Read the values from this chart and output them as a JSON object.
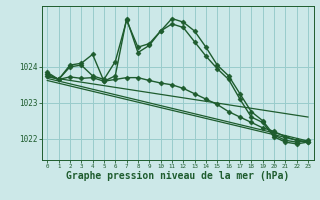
{
  "background_color": "#cce8e8",
  "grid_color": "#99cccc",
  "line_color": "#1e5c2e",
  "marker_color": "#1e5c2e",
  "xlabel": "Graphe pression niveau de la mer (hPa)",
  "xlabel_fontsize": 7,
  "xlim": [
    -0.5,
    23.5
  ],
  "ylim": [
    1021.4,
    1025.7
  ],
  "yticks": [
    1022,
    1023,
    1024
  ],
  "xticks": [
    0,
    1,
    2,
    3,
    4,
    5,
    6,
    7,
    8,
    9,
    10,
    11,
    12,
    13,
    14,
    15,
    16,
    17,
    18,
    19,
    20,
    21,
    22,
    23
  ],
  "series": [
    {
      "x": [
        0,
        1,
        2,
        3,
        4,
        5,
        6,
        7,
        8,
        9,
        10,
        11,
        12,
        13,
        14,
        15,
        16,
        17,
        18,
        19,
        20,
        21,
        22,
        23
      ],
      "y": [
        1023.8,
        1023.65,
        1024.0,
        1024.05,
        1023.75,
        1023.65,
        1024.15,
        1025.3,
        1024.55,
        1024.65,
        1025.0,
        1025.35,
        1025.25,
        1025.0,
        1024.55,
        1024.05,
        1023.75,
        1023.25,
        1022.75,
        1022.5,
        1022.1,
        1021.95,
        1021.9,
        1021.95
      ],
      "marker": "D",
      "markersize": 2.5,
      "linewidth": 1.0
    },
    {
      "x": [
        0,
        1,
        2,
        3,
        4,
        5,
        6,
        7,
        8,
        9,
        10,
        11,
        12,
        13,
        14,
        15,
        16,
        17,
        18,
        19,
        20,
        21,
        22,
        23
      ],
      "y": [
        1023.85,
        1023.65,
        1024.05,
        1024.1,
        1024.35,
        1023.6,
        1023.75,
        1025.35,
        1024.4,
        1024.6,
        1025.0,
        1025.2,
        1025.1,
        1024.7,
        1024.3,
        1023.95,
        1023.65,
        1023.1,
        1022.6,
        1022.45,
        1022.05,
        1021.9,
        1021.85,
        1021.9
      ],
      "marker": "D",
      "markersize": 2.5,
      "linewidth": 1.0
    },
    {
      "x": [
        0,
        1,
        2,
        3,
        4,
        5,
        6,
        7,
        8,
        9,
        10,
        11,
        12,
        13,
        14,
        15,
        16,
        17,
        18,
        19,
        20,
        21,
        22,
        23
      ],
      "y": [
        1023.75,
        1023.65,
        1023.72,
        1023.68,
        1023.7,
        1023.6,
        1023.65,
        1023.7,
        1023.7,
        1023.62,
        1023.55,
        1023.5,
        1023.4,
        1023.25,
        1023.1,
        1022.95,
        1022.75,
        1022.6,
        1022.45,
        1022.3,
        1022.2,
        1022.05,
        1021.95,
        1021.9
      ],
      "marker": "D",
      "markersize": 2.5,
      "linewidth": 1.0
    },
    {
      "x": [
        0,
        23
      ],
      "y": [
        1023.72,
        1022.6
      ],
      "marker": null,
      "markersize": 0,
      "linewidth": 0.9
    },
    {
      "x": [
        0,
        23
      ],
      "y": [
        1023.68,
        1021.93
      ],
      "marker": null,
      "markersize": 0,
      "linewidth": 0.9
    },
    {
      "x": [
        0,
        23
      ],
      "y": [
        1023.62,
        1021.88
      ],
      "marker": null,
      "markersize": 0,
      "linewidth": 0.9
    }
  ]
}
